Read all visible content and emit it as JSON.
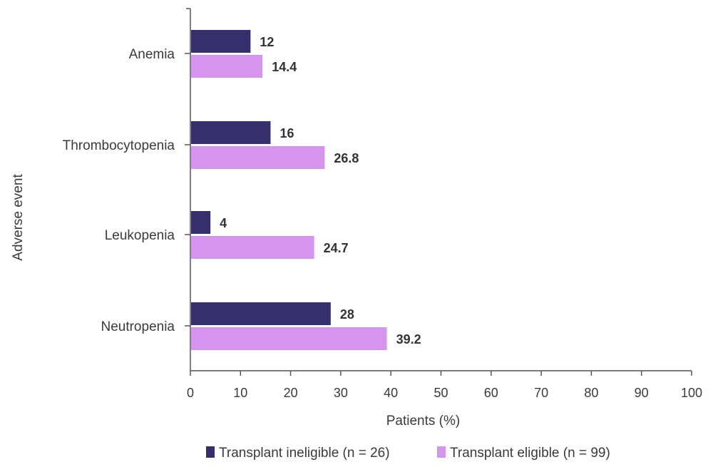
{
  "chart_data": {
    "type": "bar",
    "orientation": "horizontal",
    "title": "",
    "xlabel": "Patients (%)",
    "ylabel": "Adverse event",
    "xlim": [
      0,
      100
    ],
    "xticks": [
      0,
      10,
      20,
      30,
      40,
      50,
      60,
      70,
      80,
      90,
      100
    ],
    "grid": false,
    "legend_position": "bottom",
    "categories": [
      "Anemia",
      "Thrombocytopenia",
      "Leukopenia",
      "Neutropenia"
    ],
    "series": [
      {
        "name": "Transplant ineligible (n = 26)",
        "color": "#35306b",
        "values": [
          12,
          16,
          4,
          28
        ],
        "labels": [
          "12",
          "16",
          "4",
          "28"
        ]
      },
      {
        "name": "Transplant eligible (n = 99)",
        "color": "#d595ed",
        "values": [
          14.4,
          26.8,
          24.7,
          39.2
        ],
        "labels": [
          "14.4",
          "26.8",
          "24.7",
          "39.2"
        ]
      }
    ]
  }
}
